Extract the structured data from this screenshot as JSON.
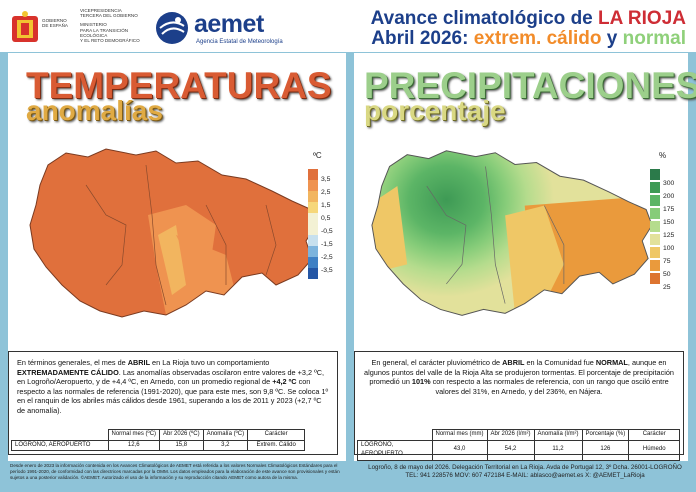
{
  "header": {
    "gov_lines": [
      "VICEPRESIDENCIA",
      "TERCERA DEL GOBIERNO",
      "MINISTERIO",
      "PARA LA TRANSICIÓN ECOLÓGICA",
      "Y EL RETO DEMOGRÁFICO"
    ],
    "gov_left_lines": [
      "GOBIERNO",
      "DE ESPAÑA"
    ],
    "aemet_name": "aemet",
    "aemet_sub": "Agencia Estatal de Meteorología",
    "title_line1_a": "Avance climatológico de ",
    "title_line1_b": "LA RIOJA",
    "title_line2_a": "Abril 2026: ",
    "title_line2_b": "extrem. cálido",
    "title_line2_c": " y ",
    "title_line2_d": "normal"
  },
  "left": {
    "title1": "TEMPERATURAS",
    "title2": "anomalías",
    "unit": "ºC",
    "legend": [
      "3,5",
      "2,5",
      "1,5",
      "0,5",
      "-0,5",
      "-1,5",
      "-2,5",
      "-3,5"
    ],
    "legend_colors": [
      "#e0703c",
      "#ef9350",
      "#f2b55f",
      "#f6d77a",
      "#f3f1d4",
      "#c7e0ee",
      "#7db4dd",
      "#3f80c4",
      "#2456a5"
    ],
    "text_p1": "En términos generales, el mes de ",
    "text_b1": "ABRIL",
    "text_p2": " en La Rioja tuvo un comportamiento ",
    "text_b2": "EXTREMADAMENTE CÁLIDO",
    "text_p3": ". Las anomalías observadas oscilaron entre valores de +3,2 ºC, en Logroño/Aeropuerto, y de +4,4 ºC, en Arnedo, con un promedio regional de ",
    "text_b3": "+4,2 ºC",
    "text_p4": " con respecto a las normales de referencia (1991-2020), que para este mes, son 9,8 ºC. Se coloca 1º en el ranquin de los abriles más cálidos desde 1961, superando a los de 2011 y 2023 (+2,7 ºC de anomalía).",
    "table_headers": [
      "Normal mes (ºC)",
      "Abr 2026 (ºC)",
      "Anomalía (ºC)",
      "Carácter"
    ],
    "table_row_name": "LOGROÑO, AEROPUERTO",
    "table_row": [
      "12,6",
      "15,8",
      "3,2",
      "Extrem. Cálido"
    ]
  },
  "right": {
    "title1": "PRECIPITACIONES",
    "title2": "porcentaje",
    "unit": "%",
    "legend": [
      "300",
      "200",
      "175",
      "150",
      "125",
      "100",
      "75",
      "50",
      "25"
    ],
    "legend_colors": [
      "#2b7a4a",
      "#3e9a55",
      "#5cb566",
      "#86cc79",
      "#b5dc8d",
      "#e2e19b",
      "#efc766",
      "#ea9a3c",
      "#dd7430"
    ],
    "text_p1": "En general, el carácter pluviométrico de ",
    "text_b1": "ABRIL",
    "text_p2": " en la Comunidad fue ",
    "text_b2": "NORMAL",
    "text_p3": ", aunque en algunos puntos del valle de la Rioja Alta se produjeron tormentas. El porcentaje de precipitación promedió un ",
    "text_b3": "101%",
    "text_p4": " con respecto a las normales de referencia, con un rango que osciló entre valores del 31%, en Arnedo, y del 236%, en Nájera.",
    "table_headers": [
      "Normal mes (mm)",
      "Abr 2026 (l/m²)",
      "Anomalía (l/m²)",
      "Porcentaje (%)",
      "Carácter"
    ],
    "table_row_name": "LOGROÑO, AEROPUERTO",
    "table_row": [
      "43,0",
      "54,2",
      "11,2",
      "126",
      "Húmedo"
    ]
  },
  "footer": {
    "left": "Desde enero de 2023 la información contenida en los Avances Climatológicos de AEMET está referida a los valores Normales Climatológicos Estándares para el período 1991-2020, de conformidad con las directrices marcadas por la OMM. Los datos empleados para la elaboración de este avance son provisionales y están sujetos a una posterior validación. ©AEMET. Autorizado el uso de la información y su reproducción citando AEMET como autora de la misma.",
    "right1": "Logroño, 8 de mayo del 2026. Delegación Territorial en La Rioja. Avda de Portugal 12, 3º Dcha. 26001-LOGROÑO",
    "right2": "TEL: 941 228576  MOV: 607 472184  E-MAIL: ablasco@aemet.es  X: @AEMET_LaRioja"
  }
}
